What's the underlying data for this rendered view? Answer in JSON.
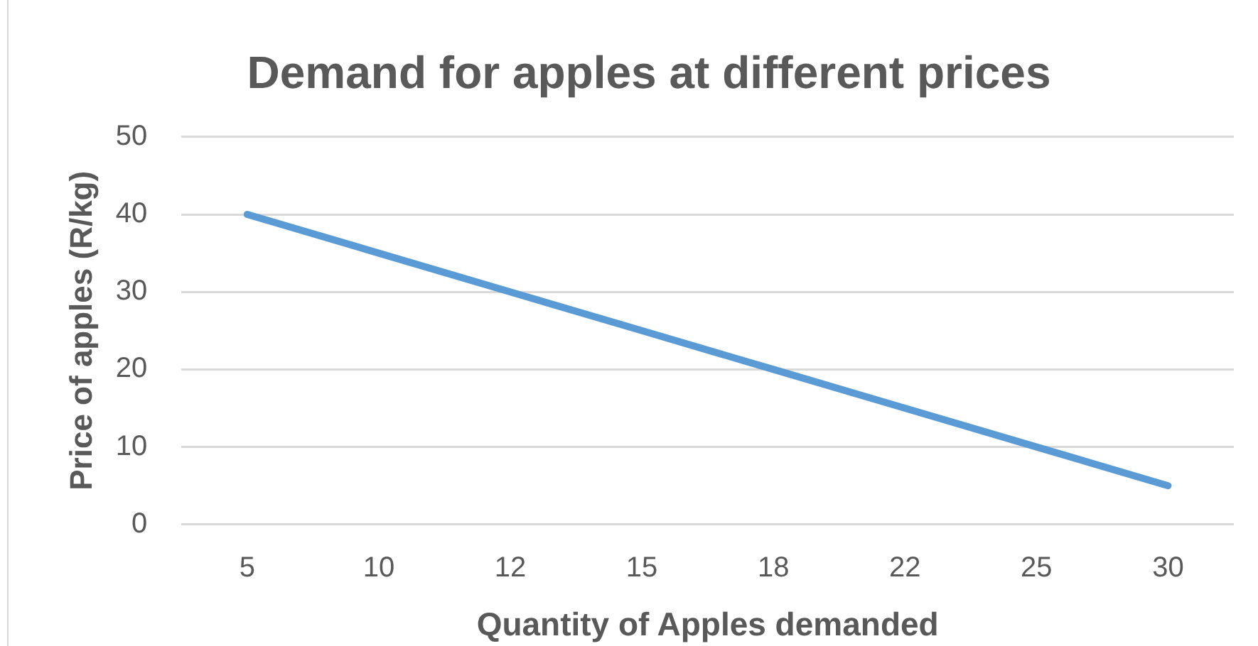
{
  "chart_data": {
    "type": "line",
    "title": "Demand for apples at different prices",
    "xlabel": "Quantity of Apples demanded",
    "ylabel": "Price of apples (R/kg)",
    "categories": [
      "5",
      "10",
      "12",
      "15",
      "18",
      "22",
      "25",
      "30"
    ],
    "series": [
      {
        "color": "#5b9bd5",
        "values": [
          40,
          35,
          30,
          25,
          20,
          15,
          10,
          5
        ]
      }
    ],
    "ylim": [
      0,
      50
    ],
    "yticks": [
      0,
      10,
      20,
      30,
      40,
      50
    ],
    "grid": "y",
    "legend": false,
    "marker": "none",
    "line_style": "solid"
  }
}
